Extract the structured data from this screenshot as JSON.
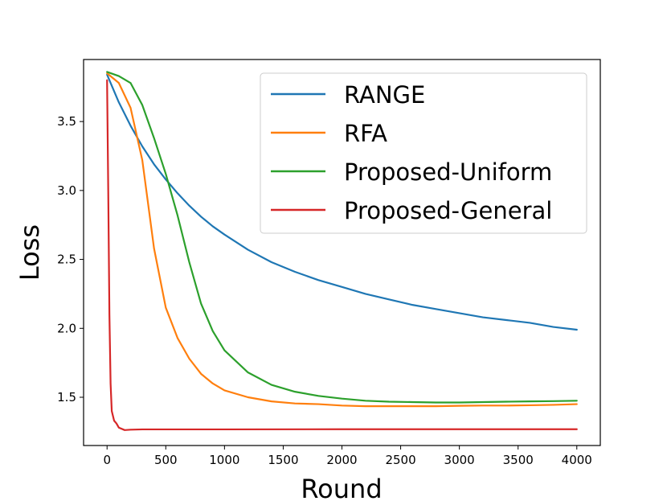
{
  "chart_data": {
    "type": "line",
    "title": "",
    "xlabel": "Round",
    "ylabel": "Loss",
    "xlim": [
      -200,
      4200
    ],
    "ylim": [
      1.15,
      3.95
    ],
    "xticks": [
      0,
      500,
      1000,
      1500,
      2000,
      2500,
      3000,
      3500,
      4000
    ],
    "yticks": [
      1.5,
      2.0,
      2.5,
      3.0,
      3.5
    ],
    "xtick_labels": [
      "0",
      "500",
      "1000",
      "1500",
      "2000",
      "2500",
      "3000",
      "3500",
      "4000"
    ],
    "ytick_labels": [
      "1.5",
      "2.0",
      "2.5",
      "3.0",
      "3.5"
    ],
    "grid": false,
    "legend_position": "top-right",
    "x": [
      0,
      100,
      200,
      300,
      400,
      500,
      600,
      700,
      800,
      900,
      1000,
      1200,
      1400,
      1600,
      1800,
      2000,
      2200,
      2400,
      2600,
      2800,
      3000,
      3200,
      3400,
      3600,
      3800,
      4000
    ],
    "series": [
      {
        "name": "RANGE",
        "color": "#1f77b4",
        "values": [
          3.84,
          3.64,
          3.47,
          3.32,
          3.19,
          3.08,
          2.98,
          2.89,
          2.81,
          2.74,
          2.68,
          2.57,
          2.48,
          2.41,
          2.35,
          2.3,
          2.25,
          2.21,
          2.17,
          2.14,
          2.11,
          2.08,
          2.06,
          2.04,
          2.01,
          1.99
        ]
      },
      {
        "name": "RFA",
        "color": "#ff7f0e",
        "values": [
          3.85,
          3.78,
          3.6,
          3.22,
          2.58,
          2.15,
          1.93,
          1.78,
          1.67,
          1.6,
          1.55,
          1.5,
          1.47,
          1.455,
          1.45,
          1.44,
          1.435,
          1.435,
          1.435,
          1.435,
          1.438,
          1.44,
          1.44,
          1.442,
          1.445,
          1.45
        ]
      },
      {
        "name": "Proposed-Uniform",
        "color": "#2ca02c",
        "values": [
          3.86,
          3.83,
          3.78,
          3.62,
          3.38,
          3.12,
          2.82,
          2.48,
          2.18,
          1.98,
          1.84,
          1.68,
          1.59,
          1.54,
          1.51,
          1.49,
          1.475,
          1.468,
          1.465,
          1.462,
          1.462,
          1.465,
          1.468,
          1.47,
          1.472,
          1.475
        ]
      },
      {
        "name": "Proposed-General",
        "color": "#d62728",
        "x": [
          0,
          10,
          20,
          30,
          40,
          60,
          80,
          100,
          150,
          200,
          300,
          500,
          1000,
          2000,
          3000,
          4000
        ],
        "values": [
          3.8,
          3.0,
          2.1,
          1.6,
          1.4,
          1.33,
          1.31,
          1.28,
          1.262,
          1.265,
          1.267,
          1.267,
          1.267,
          1.268,
          1.268,
          1.268
        ]
      }
    ]
  }
}
